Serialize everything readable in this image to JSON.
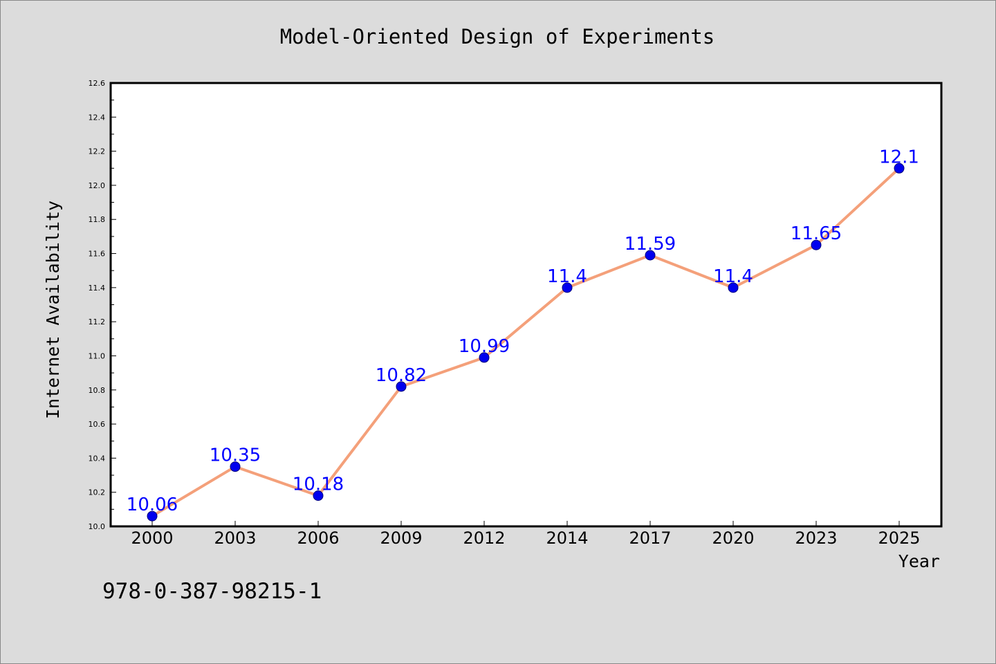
{
  "chart_data": {
    "type": "line",
    "title": "Model-Oriented Design of Experiments",
    "xlabel": "Year",
    "ylabel": "Internet Availability",
    "categories": [
      "2000",
      "2003",
      "2006",
      "2009",
      "2012",
      "2014",
      "2017",
      "2020",
      "2023",
      "2025"
    ],
    "series": [
      {
        "values": [
          10.06,
          10.35,
          10.18,
          10.82,
          10.99,
          11.4,
          11.59,
          11.4,
          11.65,
          12.1
        ],
        "data_labels": [
          "10.06",
          "10.35",
          "10.18",
          "10.82",
          "10.99",
          "11.4",
          "11.59",
          "11.4",
          "11.65",
          "12.1"
        ]
      }
    ],
    "ylim": [
      10.0,
      12.6
    ],
    "yticks": [
      "10.0",
      "10.2",
      "10.4",
      "10.6",
      "10.8",
      "11.0",
      "11.2",
      "11.4",
      "11.6",
      "11.8",
      "12.0",
      "12.2",
      "12.4",
      "12.6"
    ],
    "grid": false,
    "colors": {
      "line": "#f4a07a",
      "marker": "#0000ee",
      "marker_edge": "#00007a",
      "data_label": "#0000ff",
      "plot_background": "#ffffff",
      "figure_background": "#dcdcdc"
    }
  },
  "footer": {
    "isbn": "978-0-387-98215-1"
  }
}
